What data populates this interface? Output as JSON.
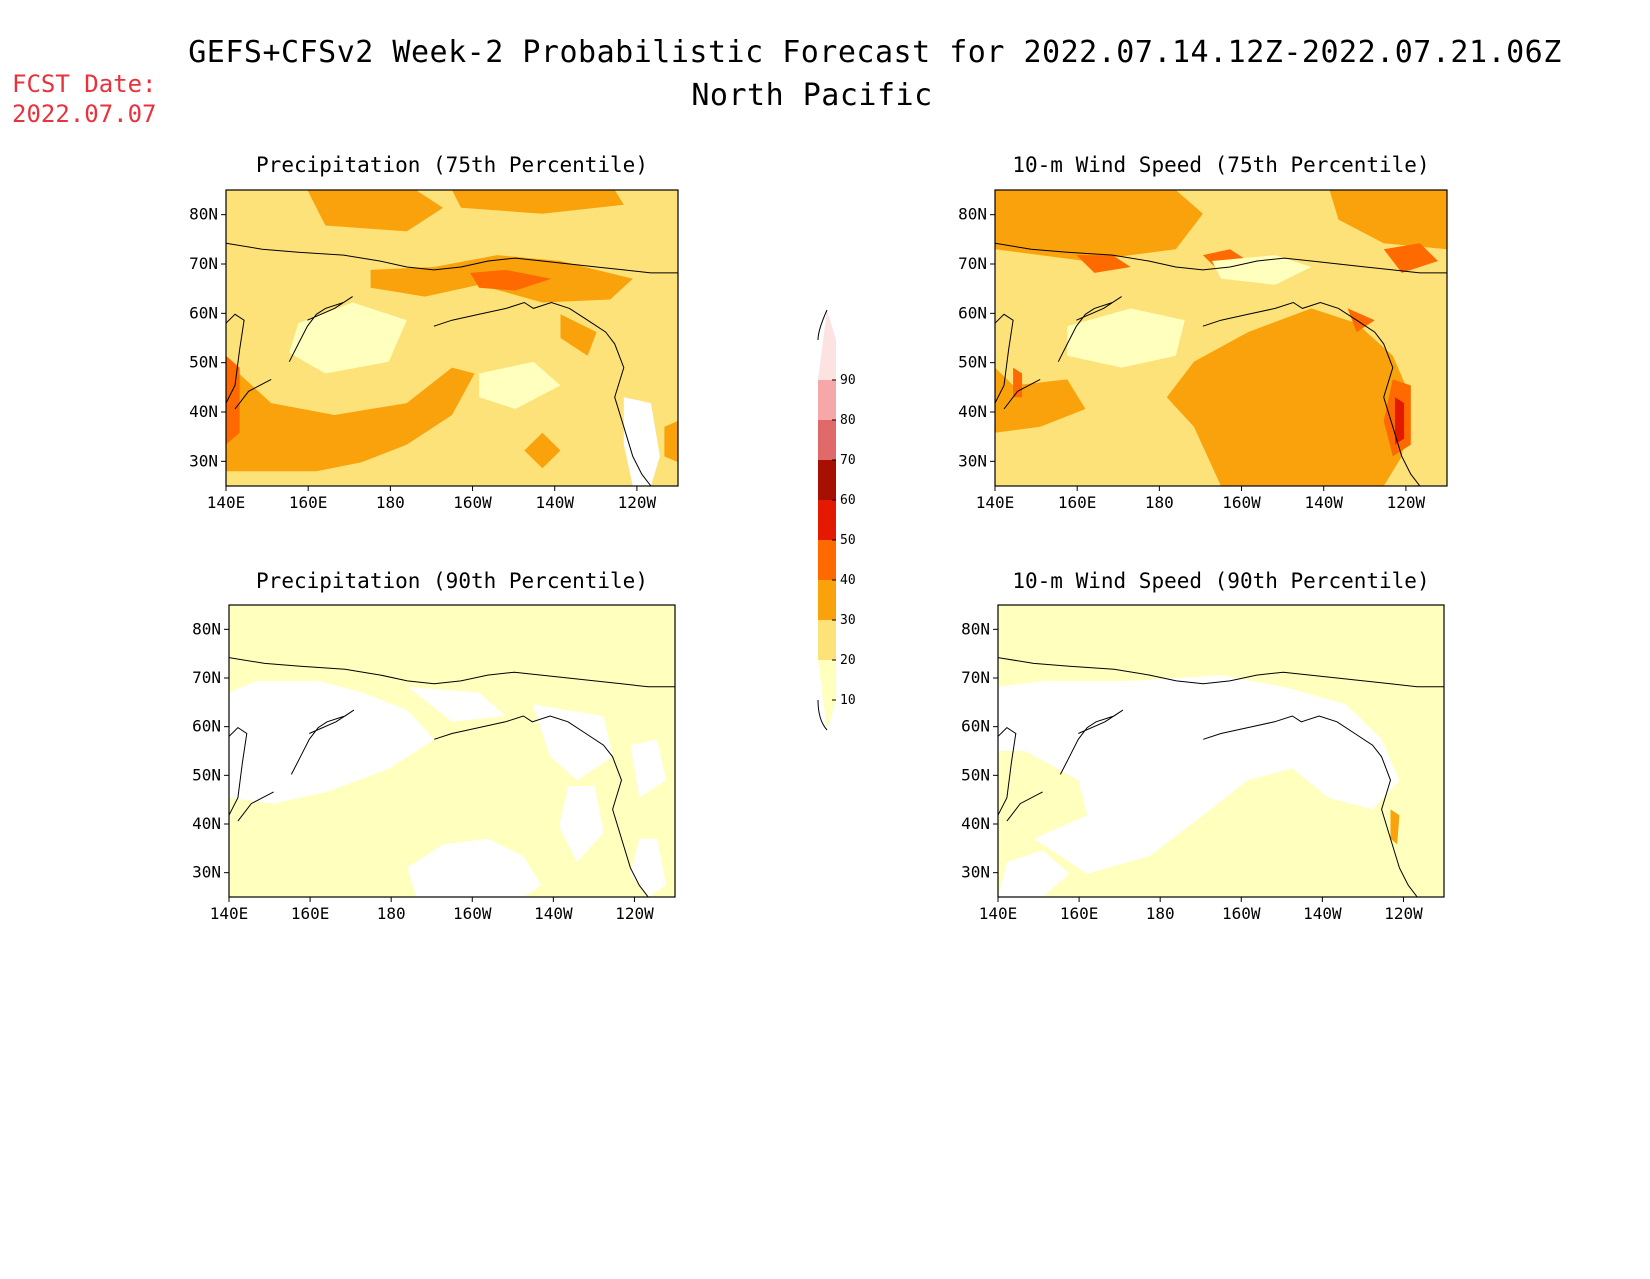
{
  "header": {
    "title": "GEFS+CFSv2 Week-2 Probabilistic Forecast for 2022.07.14.12Z-2022.07.21.06Z",
    "region": "North Pacific",
    "fcst_label": "FCST Date:",
    "fcst_date": "2022.07.07"
  },
  "colors": {
    "background": "#ffffff",
    "fcst_text": "#e8323c",
    "levels": [
      "#ffffbe",
      "#fde27a",
      "#f9a20c",
      "#ff6a00",
      "#e41a00",
      "#a51000",
      "#e06a6a",
      "#f6a7a7",
      "#fde2e2"
    ]
  },
  "chart_data": [
    {
      "type": "heatmap",
      "title": "Precipitation (75th Percentile)",
      "x_tick_labels": [
        "140E",
        "160E",
        "180",
        "160W",
        "140W",
        "120W"
      ],
      "y_tick_labels": [
        "30N",
        "40N",
        "50N",
        "60N",
        "70N",
        "80N"
      ],
      "xlim": [
        140,
        250
      ],
      "ylim": [
        25,
        85
      ],
      "dominant_ranges": [
        "20-30",
        "30-40"
      ],
      "max_level": "40-50"
    },
    {
      "type": "heatmap",
      "title": "10-m Wind Speed (75th Percentile)",
      "x_tick_labels": [
        "140E",
        "160E",
        "180",
        "160W",
        "140W",
        "120W"
      ],
      "y_tick_labels": [
        "30N",
        "40N",
        "50N",
        "60N",
        "70N",
        "80N"
      ],
      "xlim": [
        140,
        250
      ],
      "ylim": [
        25,
        85
      ],
      "dominant_ranges": [
        "20-30",
        "30-40"
      ],
      "max_level": "50-60"
    },
    {
      "type": "heatmap",
      "title": "Precipitation (90th Percentile)",
      "x_tick_labels": [
        "140E",
        "160E",
        "180",
        "160W",
        "140W",
        "120W"
      ],
      "y_tick_labels": [
        "30N",
        "40N",
        "50N",
        "60N",
        "70N",
        "80N"
      ],
      "xlim": [
        140,
        250
      ],
      "ylim": [
        25,
        85
      ],
      "dominant_ranges": [
        "<10",
        "10-20"
      ],
      "max_level": "10-20"
    },
    {
      "type": "heatmap",
      "title": "10-m Wind Speed (90th Percentile)",
      "x_tick_labels": [
        "140E",
        "160E",
        "180",
        "160W",
        "140W",
        "120W"
      ],
      "y_tick_labels": [
        "30N",
        "40N",
        "50N",
        "60N",
        "70N",
        "80N"
      ],
      "xlim": [
        140,
        250
      ],
      "ylim": [
        25,
        85
      ],
      "dominant_ranges": [
        "<10",
        "10-20"
      ],
      "max_level": "30-40"
    }
  ],
  "colorbar": {
    "labels": [
      "10",
      "20",
      "30",
      "40",
      "50",
      "60",
      "70",
      "80",
      "90"
    ]
  }
}
